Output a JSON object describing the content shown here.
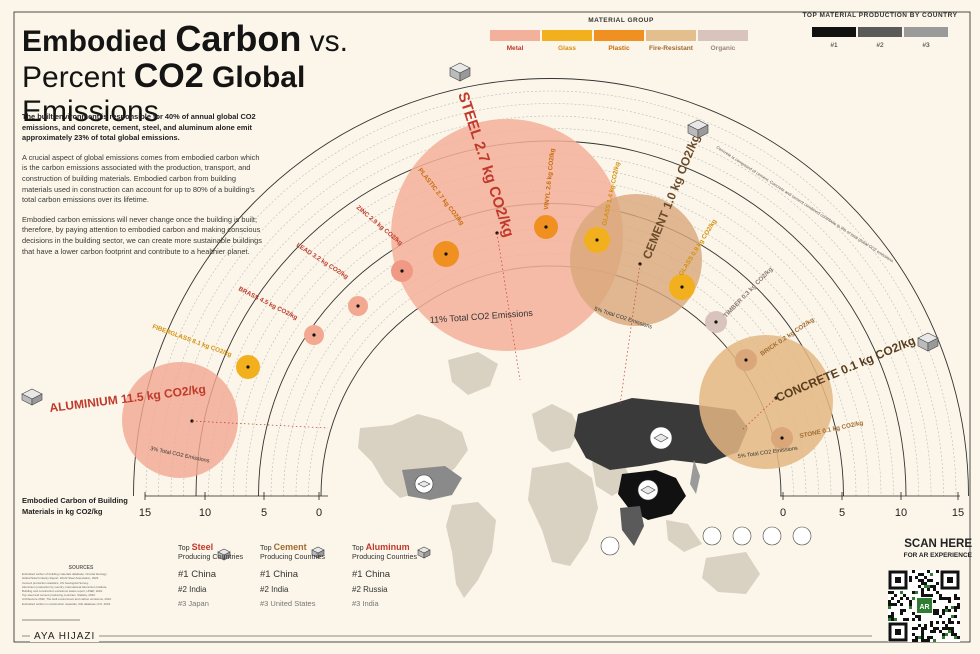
{
  "title": {
    "line1_a": "Embodied ",
    "line1_b": "Carbon",
    "line1_c": " vs.",
    "line2_a": "Percent ",
    "line2_b": "CO2",
    "line2_c": " Global ",
    "line2_d": "Emissions"
  },
  "intro": {
    "p1": "The built environment is responsible for 40% of annual global CO2 emissions, and concrete, cement, steel, and aluminum alone emit approximately 23% of total global emissions.",
    "p2": "A crucial aspect of global emissions comes from embodied carbon which is the carbon emissions associated with the production, transport, and construction of building materials. Embodied carbon from building materials used in construction can account for up to 80% of a building's total carbon emissions over its lifetime.",
    "p3": "Embodied carbon emissions will never change once the building is built; therefore, by paying attention to embodied carbon and making conscious decisions in the building sector, we can create more sustainable buildings that have a lower carbon footprint and contribute to a healthier planet."
  },
  "legend": {
    "title": "MATERIAL GROUP",
    "groups": [
      {
        "label": "Metal",
        "color": "#f3b09a",
        "text_color": "#c0392b"
      },
      {
        "label": "Glass",
        "color": "#f2b01e",
        "text_color": "#d4900b"
      },
      {
        "label": "Plastic",
        "color": "#f09020",
        "text_color": "#c86a0a"
      },
      {
        "label": "Fire-Resistant",
        "color": "#e4bf8e",
        "text_color": "#a06a30"
      },
      {
        "label": "Organic",
        "color": "#d8c4bc",
        "text_color": "#9a8580"
      }
    ]
  },
  "country_legend": {
    "title": "TOP MATERIAL PRODUCTION BY COUNTRY",
    "items": [
      {
        "label": "#1",
        "color": "#111111"
      },
      {
        "label": "#2",
        "color": "#5a5a5a"
      },
      {
        "label": "#3",
        "color": "#9a9a9a"
      }
    ]
  },
  "bubbles": {
    "steel": {
      "label": "STEEL 2.7 kg CO2/kg",
      "pct": "11% Total CO2 Emissions"
    },
    "cement": {
      "label": "CEMENT 1.0 kg CO2/kg",
      "pct": "5% Total CO2 Emissions"
    },
    "concrete": {
      "label": "CONCRETE 0.1 kg CO2/kg",
      "pct": "5% Total CO2 Emissions"
    },
    "aluminium": {
      "label": "ALUMINIUM 11.5 kg CO2/kg",
      "pct": "3% Total CO2 Emissions"
    }
  },
  "small_labels": {
    "fiberglass": "FIBERGLASS 8.1 kg CO2/kg",
    "brass": "BRASS 4.5 kg CO2/kg",
    "lead": "LEAD 3.2 kg CO2/kg",
    "zinc": "ZINC 2.9 kg CO2/kg",
    "plastic": "PLASTIC 2.7 kg CO2/kg",
    "vinyl": "VINYL 2.6 kg CO2/kg",
    "glass_a": "GLASS 1.4 kg CO2/kg",
    "glass_b": "GLASS 0.9 kg CO2/kg",
    "timber": "TIMBER 0.3 kg CO2/kg",
    "brick": "BRICK 0.2 kg CO2/kg",
    "stone": "STONE 0.1 kg CO2/kg"
  },
  "notes": {
    "concrete": "Concrete is composed of cement. Concrete and cement combined contribute to 8% of total global CO2 emissions."
  },
  "axis": {
    "caption_line1": "Embodied Carbon of Building",
    "caption_line2": "Materials in kg CO2/kg",
    "ticks_left": [
      "15",
      "10",
      "5",
      "0"
    ],
    "ticks_right": [
      "0",
      "5",
      "10",
      "15"
    ]
  },
  "producers": [
    {
      "top": "Top ",
      "material": "Steel",
      "sub": "Producing Countries",
      "color": "#c0392b",
      "c1": "#1 China",
      "c2": "#2 India",
      "c3": "#3 Japan"
    },
    {
      "top": "Top ",
      "material": "Cement",
      "sub": "Producing Countries",
      "color": "#a06a30",
      "c1": "#1 China",
      "c2": "#2 India",
      "c3": "#3 United States"
    },
    {
      "top": "Top ",
      "material": "Aluminum",
      "sub": "Producing Countries",
      "color": "#c0392b",
      "c1": "#1 China",
      "c2": "#2 Russia",
      "c3": "#3 India"
    }
  ],
  "sources": {
    "heading": "SOURCES",
    "lines": [
      "Embodied carbon of building materials database. Circular Ecology.",
      "Global Steel Industry Report, World Steel Association, 2023.",
      "Cement production statistics, US Geological Survey.",
      "Aluminium production by country, International Aluminium Institute.",
      "Building and construction emissions status report, UNEP, 2022.",
      "Top steel and cement producing countries, Statista, 2023.",
      "Architecture 2030, The built environment and carbon emissions, 2022.",
      "Embodied carbon in construction materials, ICE database v3.0, 2019."
    ]
  },
  "author": "AYA HIJAZI",
  "scan": {
    "line1": "SCAN HERE",
    "line2": "FOR AR EXPERIENCE",
    "qr_badge": "AR"
  }
}
